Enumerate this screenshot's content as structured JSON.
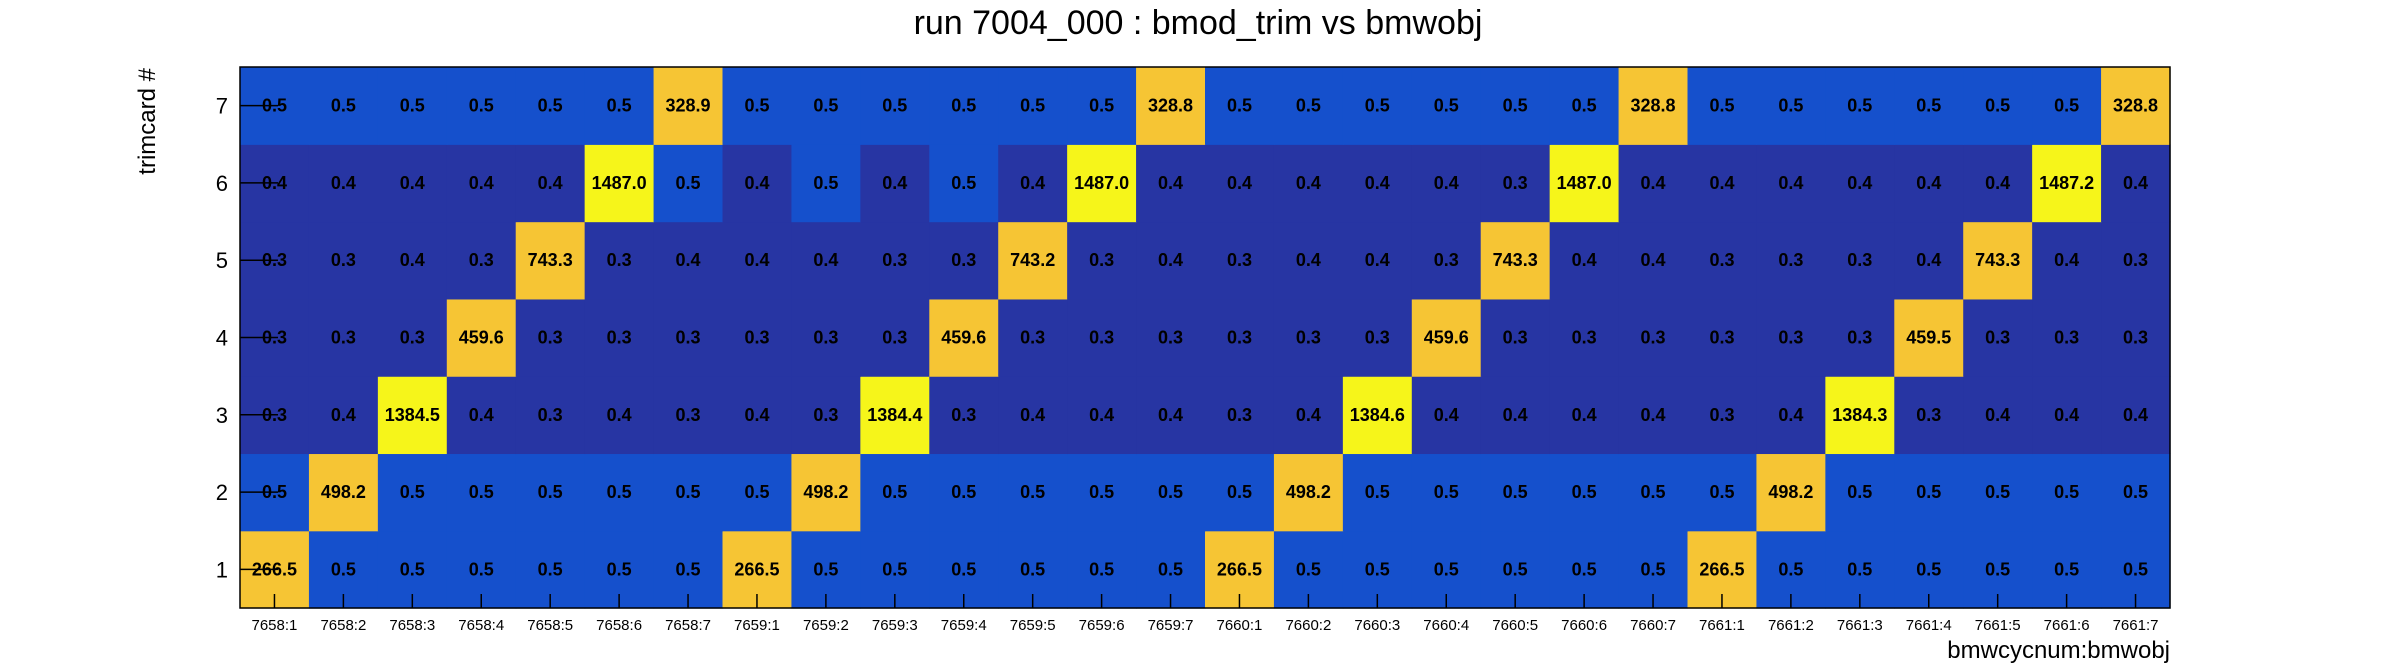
{
  "chart_data": {
    "type": "heatmap",
    "title": "run 7004_000 : bmod_trim vs bmwobj",
    "xlabel": "bmwcycnum:bmwobj",
    "ylabel": "trimcard #",
    "x_categories": [
      "7658:1",
      "7658:2",
      "7658:3",
      "7658:4",
      "7658:5",
      "7658:6",
      "7658:7",
      "7659:1",
      "7659:2",
      "7659:3",
      "7659:4",
      "7659:5",
      "7659:6",
      "7659:7",
      "7660:1",
      "7660:2",
      "7660:3",
      "7660:4",
      "7660:5",
      "7660:6",
      "7660:7",
      "7661:1",
      "7661:2",
      "7661:3",
      "7661:4",
      "7661:5",
      "7661:6",
      "7661:7"
    ],
    "y_categories": [
      "1",
      "2",
      "3",
      "4",
      "5",
      "6",
      "7"
    ],
    "values": [
      [
        "266.5",
        "0.5",
        "0.5",
        "0.5",
        "0.5",
        "0.5",
        "0.5",
        "266.5",
        "0.5",
        "0.5",
        "0.5",
        "0.5",
        "0.5",
        "0.5",
        "266.5",
        "0.5",
        "0.5",
        "0.5",
        "0.5",
        "0.5",
        "0.5",
        "266.5",
        "0.5",
        "0.5",
        "0.5",
        "0.5",
        "0.5",
        "0.5"
      ],
      [
        "0.5",
        "498.2",
        "0.5",
        "0.5",
        "0.5",
        "0.5",
        "0.5",
        "0.5",
        "498.2",
        "0.5",
        "0.5",
        "0.5",
        "0.5",
        "0.5",
        "0.5",
        "498.2",
        "0.5",
        "0.5",
        "0.5",
        "0.5",
        "0.5",
        "0.5",
        "498.2",
        "0.5",
        "0.5",
        "0.5",
        "0.5",
        "0.5"
      ],
      [
        "0.3",
        "0.4",
        "1384.5",
        "0.4",
        "0.3",
        "0.4",
        "0.3",
        "0.4",
        "0.3",
        "1384.4",
        "0.3",
        "0.4",
        "0.4",
        "0.4",
        "0.3",
        "0.4",
        "1384.6",
        "0.4",
        "0.4",
        "0.4",
        "0.4",
        "0.3",
        "0.4",
        "1384.3",
        "0.3",
        "0.4",
        "0.4",
        "0.4"
      ],
      [
        "0.3",
        "0.3",
        "0.3",
        "459.6",
        "0.3",
        "0.3",
        "0.3",
        "0.3",
        "0.3",
        "0.3",
        "459.6",
        "0.3",
        "0.3",
        "0.3",
        "0.3",
        "0.3",
        "0.3",
        "459.6",
        "0.3",
        "0.3",
        "0.3",
        "0.3",
        "0.3",
        "0.3",
        "459.5",
        "0.3",
        "0.3",
        "0.3"
      ],
      [
        "0.3",
        "0.3",
        "0.4",
        "0.3",
        "743.3",
        "0.3",
        "0.4",
        "0.4",
        "0.4",
        "0.3",
        "0.3",
        "743.2",
        "0.3",
        "0.4",
        "0.3",
        "0.4",
        "0.4",
        "0.3",
        "743.3",
        "0.4",
        "0.4",
        "0.3",
        "0.3",
        "0.3",
        "0.4",
        "743.3",
        "0.4",
        "0.3"
      ],
      [
        "0.4",
        "0.4",
        "0.4",
        "0.4",
        "0.4",
        "1487.0",
        "0.5",
        "0.4",
        "0.5",
        "0.4",
        "0.5",
        "0.4",
        "1487.0",
        "0.4",
        "0.4",
        "0.4",
        "0.4",
        "0.4",
        "0.3",
        "1487.0",
        "0.4",
        "0.4",
        "0.4",
        "0.4",
        "0.4",
        "0.4",
        "1487.2",
        "0.4"
      ],
      [
        "0.5",
        "0.5",
        "0.5",
        "0.5",
        "0.5",
        "0.5",
        "328.9",
        "0.5",
        "0.5",
        "0.5",
        "0.5",
        "0.5",
        "0.5",
        "328.8",
        "0.5",
        "0.5",
        "0.5",
        "0.5",
        "0.5",
        "0.5",
        "328.8",
        "0.5",
        "0.5",
        "0.5",
        "0.5",
        "0.5",
        "0.5",
        "328.8"
      ]
    ],
    "color_scale": {
      "dark_blue": "#2735a3",
      "blue": "#1550cc",
      "orange": "#f6c534",
      "yellow": "#f6f51a"
    },
    "grid": false,
    "legend": "none"
  }
}
